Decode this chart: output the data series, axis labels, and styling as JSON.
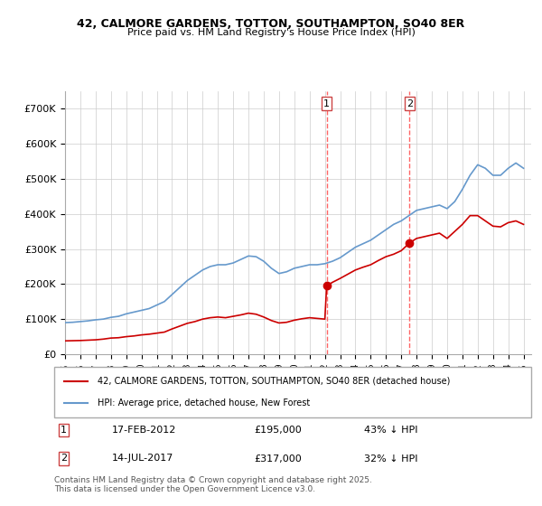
{
  "title1": "42, CALMORE GARDENS, TOTTON, SOUTHAMPTON, SO40 8ER",
  "title2": "Price paid vs. HM Land Registry's House Price Index (HPI)",
  "xlabel": "",
  "ylabel": "",
  "ylim": [
    0,
    750000
  ],
  "yticks": [
    0,
    100000,
    200000,
    300000,
    400000,
    500000,
    600000,
    700000
  ],
  "ytick_labels": [
    "£0",
    "£100K",
    "£200K",
    "£300K",
    "£400K",
    "£500K",
    "£600K",
    "£700K"
  ],
  "background_color": "#ffffff",
  "plot_bg_color": "#ffffff",
  "grid_color": "#cccccc",
  "red_line_color": "#cc0000",
  "blue_line_color": "#6699cc",
  "marker_color": "#cc0000",
  "vline_color": "#ff6666",
  "annotation1": {
    "x": 2012.12,
    "label": "1",
    "price": 195000,
    "date": "17-FEB-2012"
  },
  "annotation2": {
    "x": 2017.54,
    "label": "2",
    "price": 317000,
    "date": "14-JUL-2017"
  },
  "legend_red": "42, CALMORE GARDENS, TOTTON, SOUTHAMPTON, SO40 8ER (detached house)",
  "legend_blue": "HPI: Average price, detached house, New Forest",
  "table_row1": "1     17-FEB-2012     £195,000     43% ↓ HPI",
  "table_row2": "2     14-JUL-2017     £317,000     32% ↓ HPI",
  "footer": "Contains HM Land Registry data © Crown copyright and database right 2025.\nThis data is licensed under the Open Government Licence v3.0.",
  "hpi_years": [
    1995.0,
    1995.5,
    1996.0,
    1996.5,
    1997.0,
    1997.5,
    1998.0,
    1998.5,
    1999.0,
    1999.5,
    2000.0,
    2000.5,
    2001.0,
    2001.5,
    2002.0,
    2002.5,
    2003.0,
    2003.5,
    2004.0,
    2004.5,
    2005.0,
    2005.5,
    2006.0,
    2006.5,
    2007.0,
    2007.5,
    2008.0,
    2008.5,
    2009.0,
    2009.5,
    2010.0,
    2010.5,
    2011.0,
    2011.5,
    2012.0,
    2012.5,
    2013.0,
    2013.5,
    2014.0,
    2014.5,
    2015.0,
    2015.5,
    2016.0,
    2016.5,
    2017.0,
    2017.5,
    2018.0,
    2018.5,
    2019.0,
    2019.5,
    2020.0,
    2020.5,
    2021.0,
    2021.5,
    2022.0,
    2022.5,
    2023.0,
    2023.5,
    2024.0,
    2024.5,
    2025.0
  ],
  "hpi_values": [
    90000,
    91000,
    93000,
    95000,
    98000,
    100000,
    105000,
    108000,
    115000,
    120000,
    125000,
    130000,
    140000,
    150000,
    170000,
    190000,
    210000,
    225000,
    240000,
    250000,
    255000,
    255000,
    260000,
    270000,
    280000,
    278000,
    265000,
    245000,
    230000,
    235000,
    245000,
    250000,
    255000,
    255000,
    258000,
    265000,
    275000,
    290000,
    305000,
    315000,
    325000,
    340000,
    355000,
    370000,
    380000,
    395000,
    410000,
    415000,
    420000,
    425000,
    415000,
    435000,
    470000,
    510000,
    540000,
    530000,
    510000,
    510000,
    530000,
    545000,
    530000
  ],
  "red_years": [
    1995.0,
    1995.5,
    1996.0,
    1996.5,
    1997.0,
    1997.5,
    1998.0,
    1998.5,
    1999.0,
    1999.5,
    2000.0,
    2000.5,
    2001.0,
    2001.5,
    2002.0,
    2002.5,
    2003.0,
    2003.5,
    2004.0,
    2004.5,
    2005.0,
    2005.5,
    2006.0,
    2006.5,
    2007.0,
    2007.5,
    2008.0,
    2008.5,
    2009.0,
    2009.5,
    2010.0,
    2010.5,
    2011.0,
    2011.5,
    2012.0,
    2012.12,
    2012.5,
    2013.0,
    2013.5,
    2014.0,
    2014.5,
    2015.0,
    2015.5,
    2016.0,
    2016.5,
    2017.0,
    2017.54,
    2018.0,
    2018.5,
    2019.0,
    2019.5,
    2020.0,
    2020.5,
    2021.0,
    2021.5,
    2022.0,
    2022.5,
    2023.0,
    2023.5,
    2024.0,
    2024.5,
    2025.0
  ],
  "red_values": [
    38000,
    38500,
    39000,
    40000,
    41000,
    43000,
    46000,
    47000,
    50000,
    52000,
    55000,
    57000,
    60000,
    63000,
    72000,
    80000,
    88000,
    93000,
    100000,
    104000,
    106000,
    104000,
    108000,
    112000,
    117000,
    114000,
    106000,
    96000,
    89000,
    91000,
    97000,
    101000,
    104000,
    102000,
    100000,
    195000,
    205000,
    216000,
    228000,
    240000,
    248000,
    255000,
    267000,
    278000,
    285000,
    295000,
    317000,
    330000,
    335000,
    340000,
    345000,
    330000,
    350000,
    370000,
    395000,
    395000,
    380000,
    365000,
    363000,
    375000,
    380000,
    370000
  ],
  "xtick_years": [
    1995,
    1996,
    1997,
    1998,
    1999,
    2000,
    2001,
    2002,
    2003,
    2004,
    2005,
    2006,
    2007,
    2008,
    2009,
    2010,
    2011,
    2012,
    2013,
    2014,
    2015,
    2016,
    2017,
    2018,
    2019,
    2020,
    2021,
    2022,
    2023,
    2024,
    2025
  ]
}
